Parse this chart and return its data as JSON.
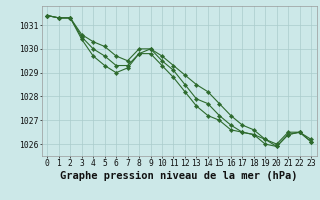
{
  "title": "Graphe pression niveau de la mer (hPa)",
  "xlabel_hours": [
    0,
    1,
    2,
    3,
    4,
    5,
    6,
    7,
    8,
    9,
    10,
    11,
    12,
    13,
    14,
    15,
    16,
    17,
    18,
    19,
    20,
    21,
    22,
    23
  ],
  "line1": [
    1031.4,
    1031.3,
    1031.3,
    1030.6,
    1030.3,
    1030.1,
    1029.7,
    1029.5,
    1030.0,
    1030.0,
    1029.7,
    1029.3,
    1028.9,
    1028.5,
    1028.2,
    1027.7,
    1027.2,
    1026.8,
    1026.6,
    1026.2,
    1026.0,
    1026.5,
    1026.5,
    1026.2
  ],
  "line2": [
    1031.4,
    1031.3,
    1031.3,
    1030.5,
    1030.0,
    1029.7,
    1029.3,
    1029.3,
    1029.8,
    1030.0,
    1029.5,
    1029.1,
    1028.5,
    1027.9,
    1027.7,
    1027.2,
    1026.8,
    1026.5,
    1026.4,
    1026.2,
    1025.9,
    1026.4,
    1026.5,
    1026.1
  ],
  "line3": [
    1031.4,
    1031.3,
    1031.3,
    1030.4,
    1029.7,
    1029.3,
    1029.0,
    1029.2,
    1029.8,
    1029.8,
    1029.3,
    1028.8,
    1028.2,
    1027.6,
    1027.2,
    1027.0,
    1026.6,
    1026.5,
    1026.4,
    1026.0,
    1025.9,
    1026.4,
    1026.5,
    1026.1
  ],
  "line_color": "#2d6a2d",
  "bg_color": "#cce8e8",
  "grid_color": "#aacccc",
  "ylim": [
    1025.5,
    1031.8
  ],
  "yticks": [
    1026,
    1027,
    1028,
    1029,
    1030,
    1031
  ],
  "title_fontsize": 7.5,
  "tick_fontsize": 5.8,
  "marker_size": 2.2,
  "linewidth": 0.8
}
